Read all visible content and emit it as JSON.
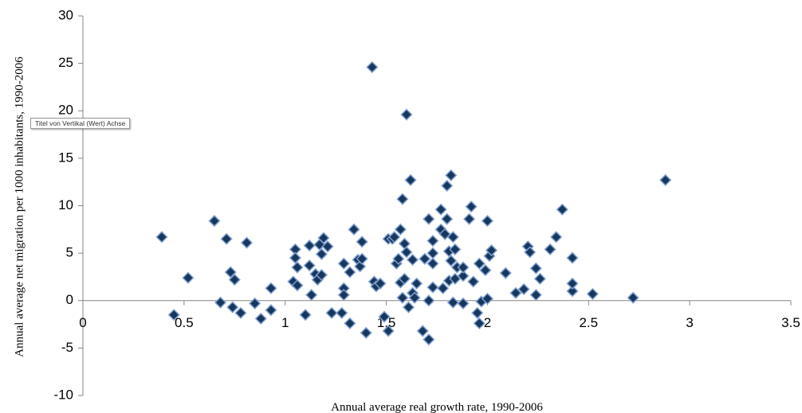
{
  "chart_data": {
    "type": "scatter",
    "x_label": "Annual average real growth rate, 1990-2006",
    "y_label": "Annual average net migration per 1000 inhabitants, 1990-2006",
    "annotation": "Titel von Vertikal (Wert) Achse",
    "color": "#17375e",
    "xlim": [
      0,
      3.5
    ],
    "xticks": [
      0,
      0.5,
      1,
      1.5,
      2,
      2.5,
      3,
      3.5
    ],
    "ylim": [
      -10,
      30
    ],
    "yticks": [
      -10,
      -5,
      0,
      5,
      10,
      15,
      20,
      25,
      30
    ],
    "x": [
      0.39,
      0.45,
      0.52,
      0.65,
      0.68,
      0.71,
      0.73,
      0.74,
      0.75,
      0.78,
      0.81,
      0.85,
      0.88,
      0.93,
      0.93,
      1.04,
      1.05,
      1.05,
      1.06,
      1.06,
      1.1,
      1.12,
      1.12,
      1.13,
      1.15,
      1.16,
      1.17,
      1.18,
      1.18,
      1.19,
      1.21,
      1.23,
      1.28,
      1.29,
      1.29,
      1.29,
      1.32,
      1.32,
      1.34,
      1.36,
      1.37,
      1.38,
      1.38,
      1.4,
      1.43,
      1.44,
      1.45,
      1.47,
      1.49,
      1.51,
      1.51,
      1.53,
      1.54,
      1.55,
      1.56,
      1.57,
      1.57,
      1.58,
      1.58,
      1.59,
      1.59,
      1.6,
      1.6,
      1.61,
      1.62,
      1.63,
      1.63,
      1.64,
      1.65,
      1.68,
      1.69,
      1.71,
      1.71,
      1.71,
      1.73,
      1.73,
      1.73,
      1.73,
      1.77,
      1.77,
      1.78,
      1.79,
      1.8,
      1.8,
      1.81,
      1.81,
      1.82,
      1.82,
      1.83,
      1.83,
      1.84,
      1.84,
      1.85,
      1.88,
      1.88,
      1.88,
      1.91,
      1.92,
      1.93,
      1.95,
      1.96,
      1.96,
      1.97,
      1.99,
      2.0,
      2.0,
      2.01,
      2.02,
      2.09,
      2.14,
      2.18,
      2.2,
      2.21,
      2.24,
      2.24,
      2.26,
      2.31,
      2.34,
      2.37,
      2.42,
      2.42,
      2.42,
      2.52,
      2.72,
      2.88
    ],
    "values": [
      6.7,
      -1.5,
      2.4,
      8.4,
      -0.2,
      6.5,
      3.0,
      -0.7,
      2.2,
      -1.3,
      6.1,
      -0.3,
      -1.9,
      1.3,
      -1.0,
      2.0,
      5.4,
      4.5,
      3.5,
      1.6,
      -1.5,
      5.8,
      3.7,
      0.6,
      2.8,
      2.2,
      5.9,
      4.9,
      2.7,
      6.6,
      5.7,
      -1.3,
      -1.3,
      3.9,
      1.3,
      0.6,
      3.0,
      -2.4,
      7.5,
      4.3,
      3.6,
      6.2,
      4.4,
      -3.4,
      24.6,
      2.0,
      1.5,
      1.8,
      -1.7,
      6.5,
      -3.2,
      6.5,
      6.7,
      3.9,
      4.4,
      7.5,
      1.9,
      10.7,
      0.3,
      6.0,
      2.3,
      5.1,
      19.6,
      -0.7,
      12.7,
      4.3,
      0.8,
      0.3,
      1.8,
      -3.2,
      4.4,
      -4.1,
      8.6,
      0.0,
      6.3,
      5.0,
      3.9,
      1.4,
      9.6,
      7.5,
      1.3,
      7.0,
      8.6,
      12.1,
      5.2,
      2.1,
      13.2,
      4.2,
      -0.2,
      6.7,
      5.4,
      2.3,
      3.5,
      -0.3,
      2.6,
      3.5,
      8.6,
      9.9,
      2.0,
      -1.3,
      -2.4,
      3.9,
      -0.1,
      3.2,
      8.4,
      0.2,
      4.7,
      5.3,
      2.9,
      0.8,
      1.2,
      5.7,
      5.1,
      0.6,
      3.4,
      2.3,
      5.4,
      6.7,
      9.6,
      4.5,
      1.0,
      1.8,
      0.7,
      0.3,
      12.7
    ]
  }
}
